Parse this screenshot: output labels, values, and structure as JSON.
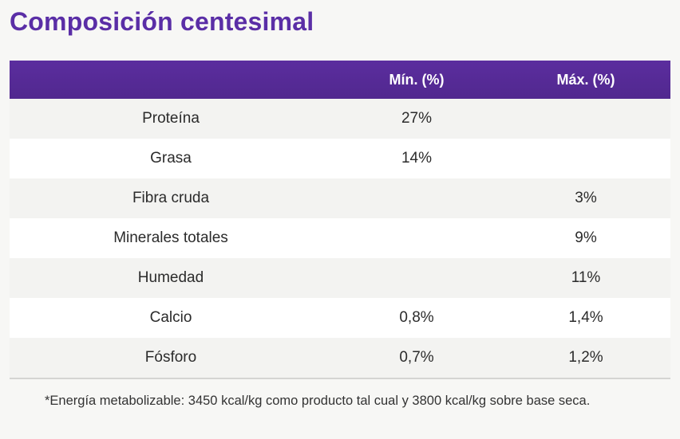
{
  "title": "Composición centesimal",
  "table": {
    "headers": [
      "",
      "Mín. (%)",
      "Máx. (%)"
    ],
    "rows": [
      {
        "name": "Proteína",
        "min": "27%",
        "max": ""
      },
      {
        "name": "Grasa",
        "min": "14%",
        "max": ""
      },
      {
        "name": "Fibra cruda",
        "min": "",
        "max": "3%"
      },
      {
        "name": "Minerales totales",
        "min": "",
        "max": "9%"
      },
      {
        "name": "Humedad",
        "min": "",
        "max": "11%"
      },
      {
        "name": "Calcio",
        "min": "0,8%",
        "max": "1,4%"
      },
      {
        "name": "Fósforo",
        "min": "0,7%",
        "max": "1,2%"
      }
    ]
  },
  "footnote": "*Energía metabolizable: 3450 kcal/kg como producto tal cual y 3800 kcal/kg sobre base seca.",
  "colors": {
    "accent": "#5a2ea6",
    "header_bg": "#55299a"
  }
}
